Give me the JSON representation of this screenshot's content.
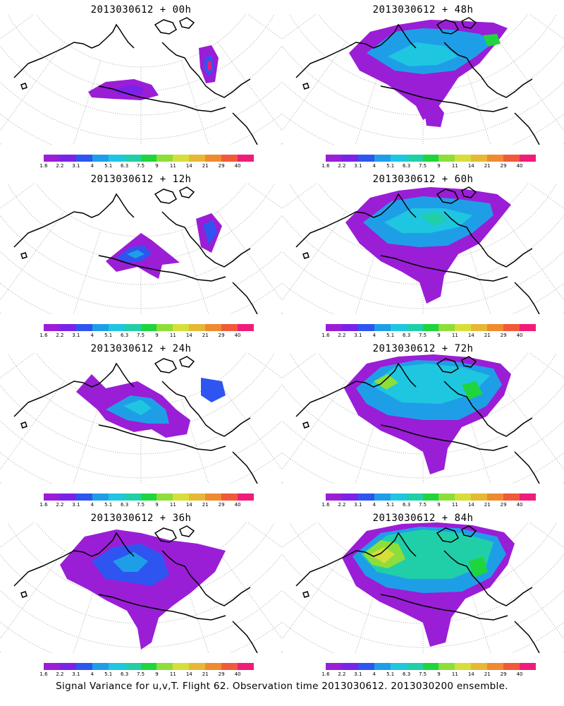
{
  "panels": [
    {
      "title": "2013030612 + 00h",
      "level": 0
    },
    {
      "title": "2013030612 + 48h",
      "level": 4
    },
    {
      "title": "2013030612 + 12h",
      "level": 1
    },
    {
      "title": "2013030612 + 60h",
      "level": 5
    },
    {
      "title": "2013030612 + 24h",
      "level": 2
    },
    {
      "title": "2013030612 + 72h",
      "level": 6
    },
    {
      "title": "2013030612 + 36h",
      "level": 3
    },
    {
      "title": "2013030612 + 84h",
      "level": 7
    }
  ],
  "colorbar": {
    "labels": [
      "1.6",
      "2.2",
      "3.1",
      "4",
      "5.1",
      "6.3",
      "7.5",
      "9",
      "11",
      "14",
      "21",
      "29",
      "40"
    ],
    "colors": [
      "#9a1ed6",
      "#7b22e8",
      "#2e55f0",
      "#1f9ee8",
      "#1fc6e0",
      "#20cfa8",
      "#1fd53d",
      "#8ede3a",
      "#d6de3a",
      "#e6b835",
      "#f08a30",
      "#f05a3a",
      "#f01c7a"
    ]
  },
  "footer": "Signal Variance for u,v,T. Flight 62. Observation time 2013030612. 2013030200 ensemble."
}
